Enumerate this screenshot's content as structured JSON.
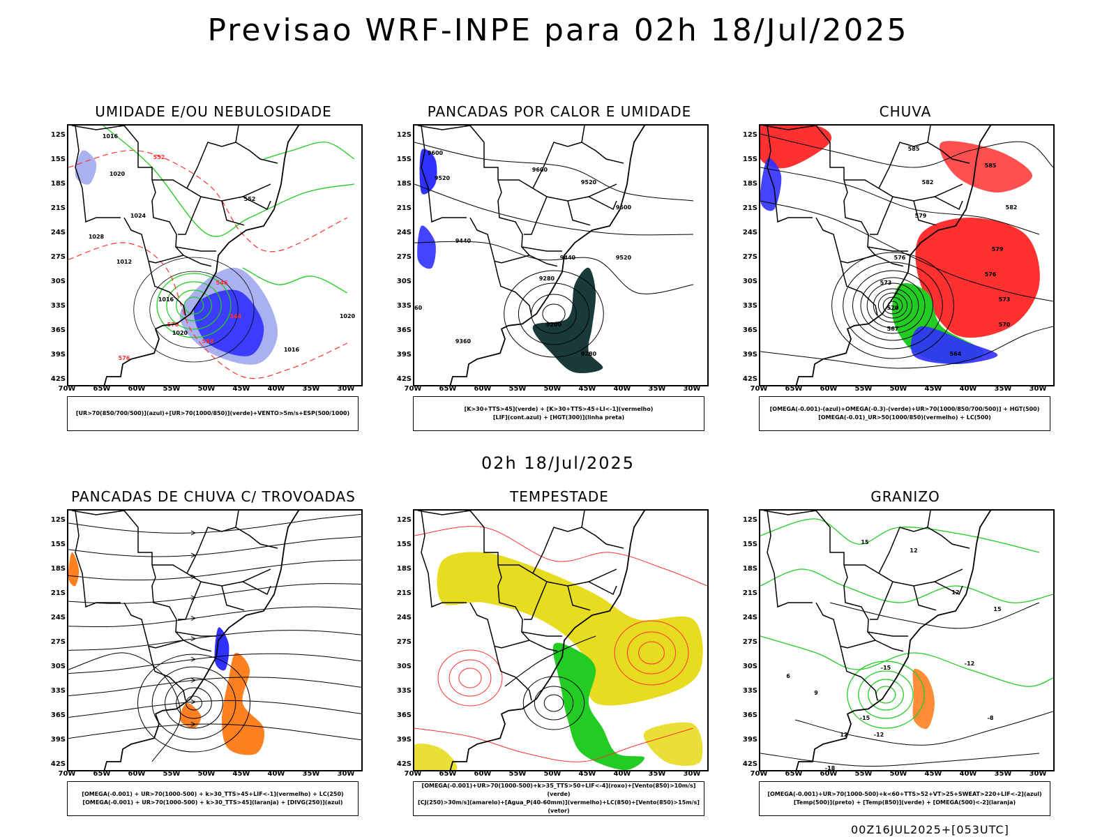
{
  "title": "Previsao WRF-INPE  para 02h 18/Jul/2025",
  "mid_time": "02h 18/Jul/2025",
  "run_label": "00Z16JUL2025+[053UTC]",
  "lat_labels": [
    "12S",
    "15S",
    "18S",
    "21S",
    "24S",
    "27S",
    "30S",
    "33S",
    "36S",
    "39S",
    "42S"
  ],
  "lon_labels": [
    "70W",
    "65W",
    "60W",
    "55W",
    "50W",
    "45W",
    "40W",
    "35W",
    "30W"
  ],
  "colors": {
    "blue": "#3030ff",
    "light_blue": "#a0a8f0",
    "green": "#22cc22",
    "red": "#ff3030",
    "orange": "#ff8020",
    "yellow": "#e8dc20",
    "teal": "#1a3a3a",
    "black": "#000000"
  },
  "panels": [
    {
      "id": "umidade",
      "title": "UMIDADE E/OU NEBULOSIDADE",
      "legend": [
        "[UR>70(850/700/500)](azul)+[UR>70(1000/850)](verde)+VENTO>5m/s+ESP(500/1000)"
      ],
      "contour_labels": [
        "1016",
        "1020",
        "1024",
        "1028",
        "1012",
        "1016",
        "1020",
        "576",
        "570",
        "564",
        "558",
        "552",
        "546",
        "552",
        "1016",
        "1020"
      ]
    },
    {
      "id": "pancadas_calor",
      "title": "PANCADAS POR CALOR E UMIDADE",
      "legend": [
        "[K>30+TTS>45](verde)  +  [K>30+TTS>45+LI<-1](vermelho)",
        "[LIF](cont.azul)  +  [HGT(300)](linha preta)"
      ],
      "contour_labels": [
        "9600",
        "9520",
        "9600",
        "9520",
        "9440",
        "9360",
        "9280",
        "9200",
        "9280",
        "9360",
        "9440",
        "9520",
        "9600"
      ]
    },
    {
      "id": "chuva",
      "title": "CHUVA",
      "legend": [
        "[OMEGA(-0.001)-(azul)+OMEGA(-0.3)-(verde)+UR>70(1000/850/700/500)]  +  HGT(500)",
        "[OMEGA(-0.01)_UR>50(1000/850)(vermelho)  +  LC(500)"
      ],
      "contour_labels": [
        "585",
        "582",
        "579",
        "576",
        "573",
        "570",
        "567",
        "564",
        "585",
        "582",
        "579",
        "576",
        "573",
        "570"
      ]
    },
    {
      "id": "pancadas_trovoadas",
      "title": "PANCADAS DE CHUVA C/ TROVOADAS",
      "legend": [
        "[OMEGA(-0.001)  +  UR>70(1000-500)  +  k>30_TTS>45+LIF<-1](vermelho)  +  LC(250)",
        "[OMEGA(-0.001)  +  UR>70(1000-500)  +  k>30_TTS>45](laranja)  +  [DIVG(250)](azul)"
      ],
      "contour_labels": []
    },
    {
      "id": "tempestade",
      "title": "TEMPESTADE",
      "legend": [
        "[OMEGA(-0.001)+UR>70(1000-500)+k>35_TTS>50+LIF<-4](roxo)+[Vento(850)>10m/s](verde)",
        "[CJ(250)>30m/s](amarelo)+[Agua_P(40-60mm)](vermelho)+LC(850)+[Vento(850)>15m/s](vetor)"
      ],
      "contour_labels": []
    },
    {
      "id": "granizo",
      "title": "GRANIZO",
      "legend": [
        "[OMEGA(-0.001)+UR>70(1000-500)+k<60+TTS>52+VT>25+SWEAT>220+LIF<-2](azul)",
        "[Temp(500)](preto)  +  [Temp(850)](verde)  +  [OMEGA(500)<-2](laranja)"
      ],
      "contour_labels": [
        "-12",
        "-15",
        "-12",
        "-8",
        "-15",
        "-18",
        "12",
        "15",
        "12",
        "6",
        "9",
        "12",
        "15"
      ]
    }
  ]
}
